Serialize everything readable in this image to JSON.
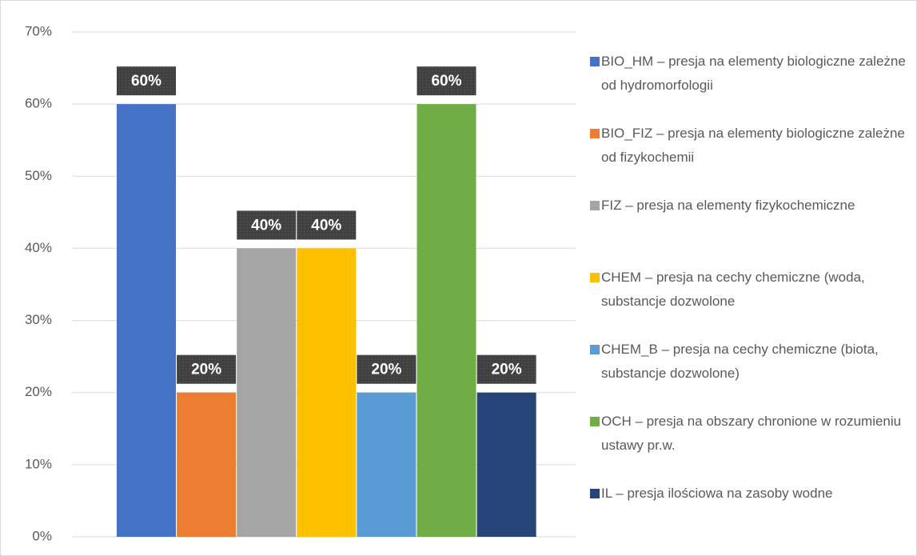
{
  "chart_data": {
    "type": "bar",
    "categories": [
      null
    ],
    "series": [
      {
        "name": "BIO_HM – presja na elementy biologiczne zależne od hydromorfologii",
        "color": "#4472c4",
        "values": [
          60
        ],
        "value_labels": [
          "60%"
        ]
      },
      {
        "name": "BIO_FIZ – presja na elementy biologiczne zależne od fizykochemii",
        "color": "#ed7d31",
        "values": [
          20
        ],
        "value_labels": [
          "20%"
        ]
      },
      {
        "name": "FIZ – presja na elementy fizykochemiczne",
        "color": "#a5a5a5",
        "values": [
          40
        ],
        "value_labels": [
          "40%"
        ]
      },
      {
        "name": "CHEM – presja na cechy chemiczne (woda, substancje dozwolone",
        "color": "#ffc000",
        "values": [
          40
        ],
        "value_labels": [
          "40%"
        ]
      },
      {
        "name": "CHEM_B – presja na cechy chemiczne (biota, substancje dozwolone)",
        "color": "#5b9bd5",
        "values": [
          20
        ],
        "value_labels": [
          "20%"
        ]
      },
      {
        "name": "OCH – presja na obszary chronione w rozumieniu ustawy pr.w.",
        "color": "#70ad47",
        "values": [
          60
        ],
        "value_labels": [
          "60%"
        ]
      },
      {
        "name": "IL – presja ilościowa na zasoby wodne",
        "color": "#264478",
        "values": [
          20
        ],
        "value_labels": [
          "20%"
        ]
      }
    ],
    "ylim": [
      0,
      70
    ],
    "yticks": [
      {
        "value": 0,
        "label": "0%"
      },
      {
        "value": 10,
        "label": "10%"
      },
      {
        "value": 20,
        "label": "20%"
      },
      {
        "value": 30,
        "label": "30%"
      },
      {
        "value": 40,
        "label": "40%"
      },
      {
        "value": 50,
        "label": "50%"
      },
      {
        "value": 60,
        "label": "60%"
      },
      {
        "value": 70,
        "label": "70%"
      }
    ],
    "grid": true,
    "legend": "right"
  }
}
